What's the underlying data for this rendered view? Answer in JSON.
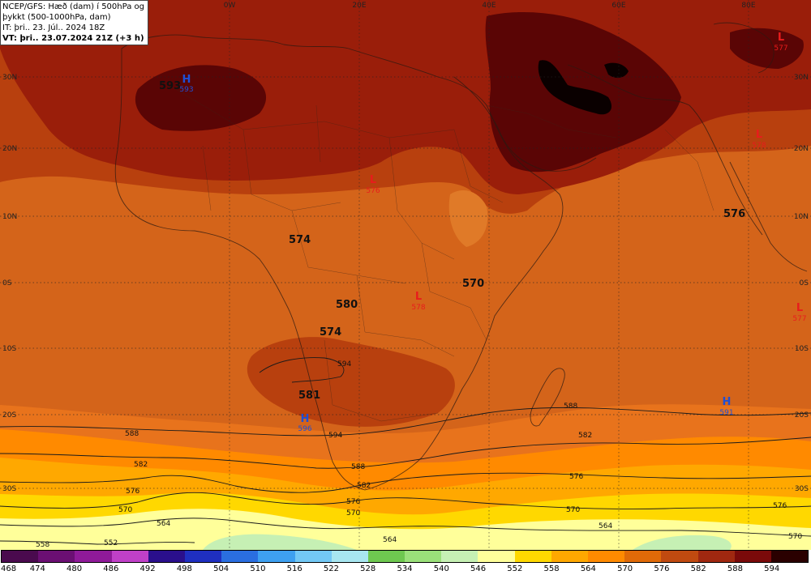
{
  "header": {
    "line1": "NCEP/GFS: Hæð (dam) í 500hPa og",
    "line2": "þykkt (500-1000hPa, dam)",
    "line3": "IT: þri.. 23. Júl.. 2024 18Z",
    "line4": "VT: þri.. 23.07.2024 21Z (+3 h)"
  },
  "lon_labels": [
    "0W",
    "20E",
    "40E",
    "60E",
    "80E"
  ],
  "lat_labels": [
    "30N",
    "20N",
    "10N",
    "0S",
    "10S",
    "20S",
    "30S"
  ],
  "contour_big_labels": [
    "593",
    "574",
    "580",
    "574",
    "570",
    "576",
    "581"
  ],
  "contour_small_labels": [
    "588",
    "582",
    "576",
    "570",
    "564",
    "558",
    "552",
    "594",
    "588",
    "582",
    "576",
    "570",
    "564",
    "570",
    "564",
    "570",
    "576",
    "582",
    "588",
    "594",
    "576"
  ],
  "pressure_centers": [
    {
      "type": "H",
      "value": "593",
      "color": "#1f4fd6"
    },
    {
      "type": "H",
      "value": "596",
      "color": "#1f4fd6"
    },
    {
      "type": "H",
      "value": "591",
      "color": "#1f4fd6"
    },
    {
      "type": "L",
      "value": "577",
      "color": "#e81c1c"
    },
    {
      "type": "L",
      "value": "578",
      "color": "#e81c1c"
    },
    {
      "type": "L",
      "value": "576",
      "color": "#e81c1c"
    },
    {
      "type": "L",
      "value": "578",
      "color": "#e81c1c"
    },
    {
      "type": "L",
      "value": "577",
      "color": "#e81c1c"
    }
  ],
  "colorbar": {
    "values": [
      "468",
      "474",
      "480",
      "486",
      "492",
      "498",
      "504",
      "510",
      "516",
      "522",
      "528",
      "534",
      "540",
      "546",
      "552",
      "558",
      "564",
      "570",
      "576",
      "582",
      "588",
      "594"
    ],
    "colors": [
      "#4a0a4e",
      "#6b0f73",
      "#8f1a99",
      "#c040c8",
      "#2a0f8c",
      "#1f2fc0",
      "#2a6ee0",
      "#3ea0f0",
      "#73c8f5",
      "#a8e6f0",
      "#6ec850",
      "#9ae07a",
      "#c6f0b4",
      "#ffff9a",
      "#ffd800",
      "#ffa800",
      "#ff8a00",
      "#e06a08",
      "#c04a10",
      "#a02810",
      "#7a0a0a",
      "#2a0000"
    ]
  }
}
